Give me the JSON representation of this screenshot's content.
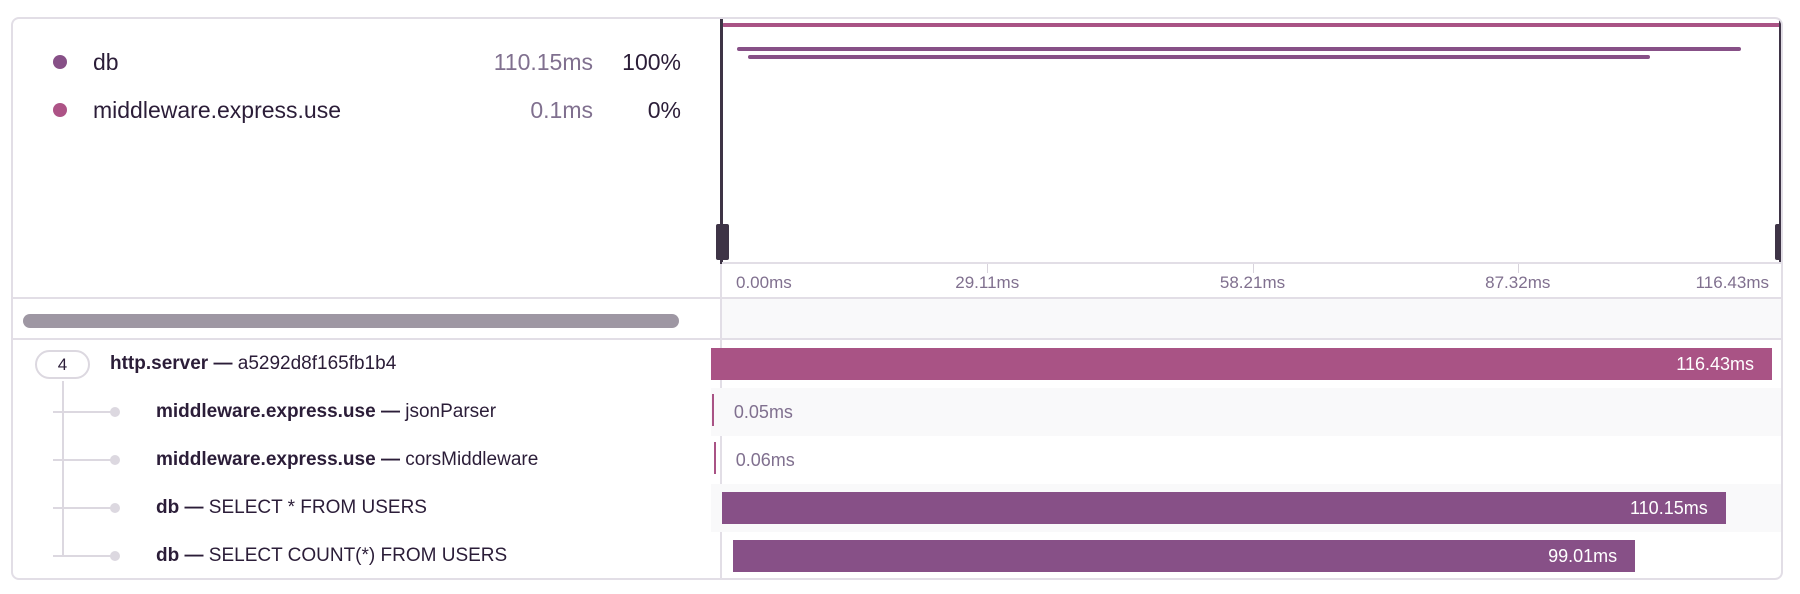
{
  "colors": {
    "http": "#a95385",
    "db": "#875087",
    "middleware": "#a95385",
    "handle": "#3e3446"
  },
  "legend": [
    {
      "name": "db",
      "duration": "110.15ms",
      "percent": "100%",
      "color": "#875087"
    },
    {
      "name": "middleware.express.use",
      "duration": "0.1ms",
      "percent": "0%",
      "color": "#ad5386"
    }
  ],
  "axis": {
    "total_ms": 116.43,
    "ticks": [
      "0.00ms",
      "29.11ms",
      "58.21ms",
      "87.32ms",
      "116.43ms"
    ]
  },
  "tree": {
    "children_count": "4"
  },
  "spans": [
    {
      "op": "http.server",
      "sep": " — ",
      "desc": "a5292d8f165fb1b4",
      "start_ms": 0,
      "duration_ms": 116.43,
      "label": "116.43ms",
      "color": "#a95385",
      "depth": 0
    },
    {
      "op": "middleware.express.use",
      "sep": " — ",
      "desc": "jsonParser",
      "start_ms": 0.1,
      "duration_ms": 0.05,
      "label": "0.05ms",
      "color": "#a95385",
      "depth": 1
    },
    {
      "op": "middleware.express.use",
      "sep": " — ",
      "desc": "corsMiddleware",
      "start_ms": 0.3,
      "duration_ms": 0.06,
      "label": "0.06ms",
      "color": "#a95385",
      "depth": 1
    },
    {
      "op": "db",
      "sep": " — ",
      "desc": "SELECT * FROM USERS",
      "start_ms": 1.2,
      "duration_ms": 110.15,
      "label": "110.15ms",
      "color": "#875087",
      "depth": 1
    },
    {
      "op": "db",
      "sep": " — ",
      "desc": "SELECT COUNT(*) FROM USERS",
      "start_ms": 2.4,
      "duration_ms": 99.01,
      "label": "99.01ms",
      "color": "#875087",
      "depth": 1
    }
  ]
}
